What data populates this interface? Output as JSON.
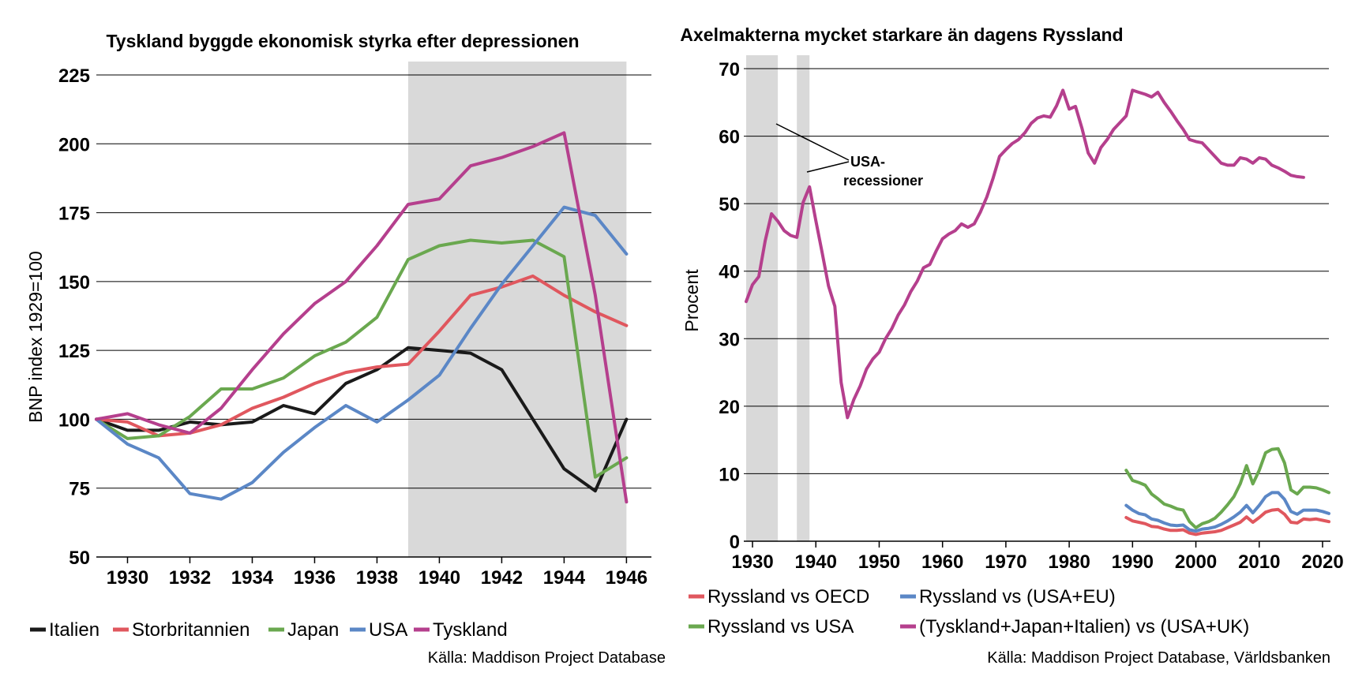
{
  "colors": {
    "Italien": "#1a1a1a",
    "Storbritannien": "#e0575e",
    "Japan": "#6aa84f",
    "USA": "#5b87c6",
    "Tyskland": "#b53f8d",
    "recession_shade": "#d9d9d9"
  },
  "source_left": "Källa: Maddison Project Database",
  "source_right": "Källa: Maddison Project Database, Världsbanken",
  "annotation": {
    "line1": "USA-",
    "line2": "recessioner"
  },
  "chart_data": [
    {
      "type": "line",
      "title": "Tyskland byggde ekonomisk styrka efter depressionen",
      "xlabel": "",
      "ylabel": "BNP index 1929=100",
      "xlim": [
        1929,
        1946.8
      ],
      "ylim": [
        50,
        225
      ],
      "yticks": [
        50,
        75,
        100,
        125,
        150,
        175,
        200,
        225
      ],
      "xticks": [
        1930,
        1932,
        1934,
        1936,
        1938,
        1940,
        1942,
        1944,
        1946
      ],
      "shaded_ranges": [
        [
          1939,
          1946
        ]
      ],
      "grid": "horizontal",
      "legend_position": "bottom",
      "x": [
        1929,
        1930,
        1931,
        1932,
        1933,
        1934,
        1935,
        1936,
        1937,
        1938,
        1939,
        1940,
        1941,
        1942,
        1943,
        1944,
        1945,
        1946
      ],
      "series": [
        {
          "name": "Italien",
          "values": [
            100,
            96,
            96,
            99,
            98,
            99,
            105,
            102,
            113,
            118,
            126,
            125,
            124,
            118,
            100,
            82,
            74,
            100
          ]
        },
        {
          "name": "Storbritannien",
          "values": [
            100,
            99,
            94,
            95,
            98,
            104,
            108,
            113,
            117,
            119,
            120,
            132,
            145,
            148,
            152,
            145,
            139,
            134
          ]
        },
        {
          "name": "Japan",
          "values": [
            100,
            93,
            94,
            101,
            111,
            111,
            115,
            123,
            128,
            137,
            158,
            163,
            165,
            164,
            165,
            159,
            79,
            86
          ]
        },
        {
          "name": "USA",
          "values": [
            100,
            91,
            86,
            73,
            71,
            77,
            88,
            97,
            105,
            99,
            107,
            116,
            133,
            149,
            163,
            177,
            174,
            160
          ]
        },
        {
          "name": "Tyskland",
          "values": [
            100,
            102,
            98,
            95,
            104,
            118,
            131,
            142,
            150,
            163,
            178,
            180,
            192,
            195,
            199,
            204,
            145,
            70
          ]
        }
      ]
    },
    {
      "type": "line",
      "title": "Axelmakterna mycket starkare än dagens Ryssland",
      "xlabel": "",
      "ylabel": "Procent",
      "xlim": [
        1929,
        2021
      ],
      "ylim": [
        0,
        70
      ],
      "yticks": [
        0,
        10,
        20,
        30,
        40,
        50,
        60,
        70
      ],
      "xticks": [
        1930,
        1940,
        1950,
        1960,
        1970,
        1980,
        1990,
        2000,
        2010,
        2020
      ],
      "shaded_ranges": [
        [
          1929,
          1934
        ],
        [
          1937,
          1939
        ]
      ],
      "grid": "horizontal",
      "legend_position": "bottom",
      "series": [
        {
          "name": "Ryssland vs OECD",
          "x": [
            1989,
            1990,
            1991,
            1992,
            1993,
            1994,
            1995,
            1996,
            1997,
            1998,
            1999,
            2000,
            2001,
            2002,
            2003,
            2004,
            2005,
            2006,
            2007,
            2008,
            2009,
            2010,
            2011,
            2012,
            2013,
            2014,
            2015,
            2016,
            2017,
            2018,
            2019,
            2020,
            2021
          ],
          "values": [
            3.5,
            3.0,
            2.8,
            2.6,
            2.2,
            2.1,
            1.8,
            1.6,
            1.6,
            1.7,
            1.2,
            1.0,
            1.2,
            1.3,
            1.4,
            1.6,
            2.0,
            2.4,
            2.8,
            3.6,
            2.8,
            3.5,
            4.3,
            4.6,
            4.7,
            4.0,
            2.8,
            2.7,
            3.3,
            3.2,
            3.3,
            3.1,
            2.9
          ]
        },
        {
          "name": "Ryssland vs (USA+EU)",
          "x": [
            1989,
            1990,
            1991,
            1992,
            1993,
            1994,
            1995,
            1996,
            1997,
            1998,
            1999,
            2000,
            2001,
            2002,
            2003,
            2004,
            2005,
            2006,
            2007,
            2008,
            2009,
            2010,
            2011,
            2012,
            2013,
            2014,
            2015,
            2016,
            2017,
            2018,
            2019,
            2020,
            2021
          ],
          "values": [
            5.3,
            4.6,
            4.1,
            3.9,
            3.3,
            3.1,
            2.7,
            2.4,
            2.3,
            2.4,
            1.7,
            1.5,
            1.8,
            1.9,
            2.1,
            2.5,
            3.0,
            3.6,
            4.3,
            5.3,
            4.2,
            5.3,
            6.6,
            7.2,
            7.2,
            6.2,
            4.4,
            4.0,
            4.6,
            4.6,
            4.6,
            4.4,
            4.1
          ]
        },
        {
          "name": "Ryssland vs USA",
          "x": [
            1989,
            1990,
            1991,
            1992,
            1993,
            1994,
            1995,
            1996,
            1997,
            1998,
            1999,
            2000,
            2001,
            2002,
            2003,
            2004,
            2005,
            2006,
            2007,
            2008,
            2009,
            2010,
            2011,
            2012,
            2013,
            2014,
            2015,
            2016,
            2017,
            2018,
            2019,
            2020,
            2021
          ],
          "values": [
            10.5,
            9.0,
            8.7,
            8.3,
            7.0,
            6.3,
            5.5,
            5.2,
            4.8,
            4.6,
            2.9,
            2.0,
            2.6,
            2.9,
            3.4,
            4.3,
            5.4,
            6.6,
            8.5,
            11.2,
            8.5,
            10.5,
            13.1,
            13.6,
            13.7,
            11.6,
            7.6,
            7.0,
            8.0,
            8.0,
            7.9,
            7.6,
            7.2
          ]
        },
        {
          "name": "(Tyskland+Japan+Italien) vs (USA+UK)",
          "x": [
            1929,
            1930,
            1931,
            1932,
            1933,
            1934,
            1935,
            1936,
            1937,
            1938,
            1939,
            1940,
            1941,
            1942,
            1943,
            1944,
            1945,
            1946,
            1947,
            1948,
            1949,
            1950,
            1951,
            1952,
            1953,
            1954,
            1955,
            1956,
            1957,
            1958,
            1959,
            1960,
            1961,
            1962,
            1963,
            1964,
            1965,
            1966,
            1967,
            1968,
            1969,
            1970,
            1971,
            1972,
            1973,
            1974,
            1975,
            1976,
            1977,
            1978,
            1979,
            1980,
            1981,
            1982,
            1983,
            1984,
            1985,
            1986,
            1987,
            1988,
            1989,
            1990,
            1991,
            1992,
            1993,
            1994,
            1995,
            1996,
            1997,
            1998,
            1999,
            2000,
            2001,
            2002,
            2003,
            2004,
            2005,
            2006,
            2007,
            2008,
            2009,
            2010,
            2011,
            2012,
            2013,
            2014,
            2015,
            2016,
            2017
          ],
          "values": [
            35.5,
            38.0,
            39.2,
            44.5,
            48.5,
            47.4,
            46.0,
            45.3,
            45.0,
            50.2,
            52.5,
            47.5,
            42.7,
            37.8,
            34.8,
            23.5,
            18.3,
            21.0,
            23.0,
            25.5,
            27.0,
            28.0,
            30.0,
            31.5,
            33.5,
            35.0,
            37.0,
            38.5,
            40.5,
            41.0,
            43.0,
            44.8,
            45.5,
            46.0,
            47.0,
            46.5,
            47.0,
            48.8,
            51.0,
            53.8,
            57.0,
            58.0,
            58.9,
            59.5,
            60.5,
            61.9,
            62.7,
            63.0,
            62.8,
            64.5,
            66.8,
            64.0,
            64.4,
            61.2,
            57.5,
            56.0,
            58.3,
            59.5,
            61.0,
            62.0,
            63.0,
            66.8,
            66.5,
            66.2,
            65.8,
            66.5,
            65.0,
            63.7,
            62.3,
            61.0,
            59.5,
            59.2,
            59.0,
            58.0,
            57.0,
            56.0,
            55.7,
            55.7,
            56.8,
            56.6,
            56.0,
            56.8,
            56.6,
            55.7,
            55.3,
            54.8,
            54.2,
            54.0,
            53.9
          ]
        }
      ]
    }
  ]
}
